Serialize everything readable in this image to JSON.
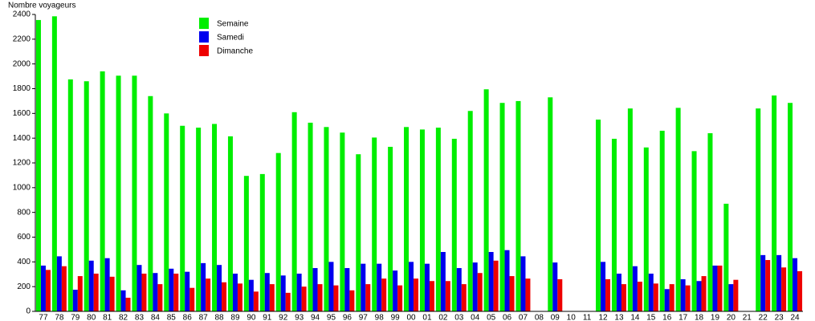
{
  "chart_data": {
    "type": "bar",
    "y_label": "Nombre voyageurs",
    "categories": [
      "77",
      "78",
      "79",
      "80",
      "81",
      "82",
      "83",
      "84",
      "85",
      "86",
      "87",
      "88",
      "89",
      "90",
      "91",
      "92",
      "93",
      "94",
      "95",
      "96",
      "97",
      "98",
      "99",
      "00",
      "01",
      "02",
      "03",
      "04",
      "05",
      "06",
      "07",
      "08",
      "09",
      "10",
      "11",
      "12",
      "13",
      "14",
      "15",
      "16",
      "17",
      "18",
      "19",
      "20",
      "21",
      "22",
      "23",
      "24"
    ],
    "series": [
      {
        "name": "Semaine",
        "color": "#00ee00",
        "values": [
          2355,
          2385,
          1875,
          1860,
          1940,
          1905,
          1905,
          1740,
          1600,
          1500,
          1485,
          1515,
          1415,
          1095,
          1110,
          1280,
          1610,
          1525,
          1490,
          1445,
          1270,
          1405,
          1330,
          1490,
          1470,
          1485,
          1395,
          1620,
          1795,
          1685,
          1700,
          null,
          1730,
          null,
          null,
          1550,
          1395,
          1640,
          1325,
          1460,
          1645,
          1295,
          1440,
          870,
          null,
          1640,
          1745,
          1685
        ]
      },
      {
        "name": "Samedi",
        "color": "#0000ee",
        "values": [
          370,
          445,
          175,
          410,
          430,
          170,
          375,
          310,
          345,
          320,
          390,
          375,
          305,
          255,
          310,
          290,
          305,
          350,
          400,
          350,
          385,
          385,
          330,
          400,
          385,
          480,
          350,
          395,
          480,
          495,
          445,
          null,
          395,
          null,
          null,
          400,
          305,
          365,
          305,
          180,
          260,
          245,
          370,
          220,
          null,
          455,
          455,
          430
        ]
      },
      {
        "name": "Dimanche",
        "color": "#ee0000",
        "values": [
          335,
          365,
          285,
          305,
          280,
          110,
          305,
          220,
          305,
          190,
          265,
          235,
          225,
          160,
          220,
          150,
          200,
          220,
          210,
          170,
          220,
          265,
          210,
          265,
          245,
          245,
          220,
          310,
          410,
          285,
          265,
          null,
          260,
          null,
          null,
          260,
          220,
          240,
          225,
          220,
          210,
          285,
          370,
          255,
          null,
          415,
          355,
          325
        ]
      }
    ],
    "ylim": [
      0,
      2400
    ],
    "yticks": [
      0,
      200,
      400,
      600,
      800,
      1000,
      1200,
      1400,
      1600,
      1800,
      2000,
      2200,
      2400
    ],
    "grid": false
  }
}
